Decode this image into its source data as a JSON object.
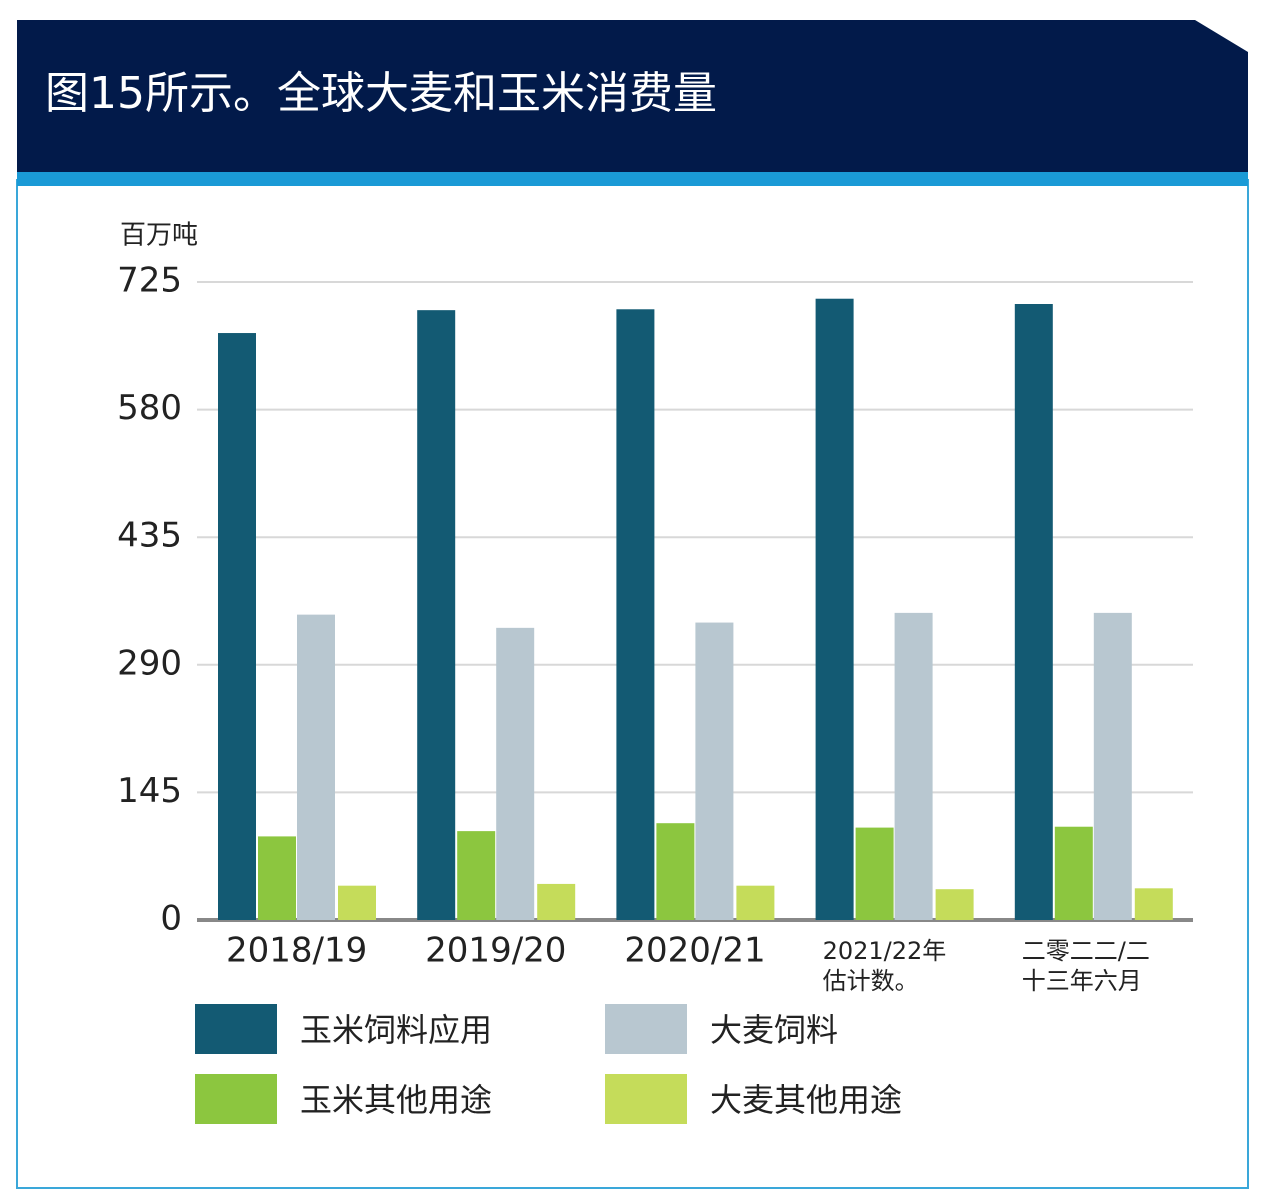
{
  "chart_data": {
    "type": "bar",
    "title": "图15所示。全球大麦和玉米消费量",
    "y_label": "百万吨",
    "categories": [
      "2018/19",
      "2019/20",
      "2020/21",
      "2021/22年\n估计数。",
      "二零二二/二\n十三年六月"
    ],
    "series": [
      {
        "name": "玉米饲料应用",
        "color": "#135a73",
        "values": [
          667,
          693,
          694,
          706,
          700
        ]
      },
      {
        "name": "玉米其他用途",
        "color": "#8cc63f",
        "values": [
          95,
          101,
          110,
          105,
          106
        ]
      },
      {
        "name": "大麦饲料",
        "color": "#b8c7d0",
        "values": [
          347,
          332,
          338,
          349,
          349
        ]
      },
      {
        "name": "大麦其他用途",
        "color": "#c5dc5a",
        "values": [
          39,
          41,
          39,
          35,
          36
        ]
      }
    ],
    "ylim": [
      0,
      725
    ],
    "yticks": [
      0,
      145,
      290,
      435,
      580,
      725
    ],
    "grid": true
  }
}
